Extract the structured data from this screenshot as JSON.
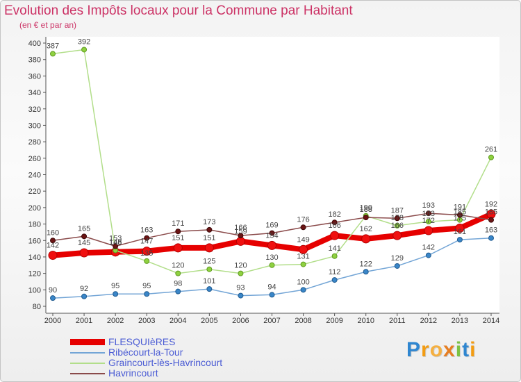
{
  "logo_text": "Proxiti",
  "colors": {
    "title": "#cc3366",
    "legend_text": "#4a5bd4",
    "axis": "#555555",
    "tick_text": "#333333",
    "data_label": "#444444",
    "plot_background": "#ffffff",
    "logo_letters": [
      "#2f86d0",
      "#f39c12",
      "#f5b041",
      "#e67e22",
      "#7cc242",
      "#2f86d0",
      "#f39c12"
    ]
  },
  "chart_data": {
    "type": "line",
    "title": "Evolution des Impôts locaux pour la Commune par Habitant",
    "subtitle": "(en € et par an)",
    "x": [
      2000,
      2001,
      2002,
      2003,
      2004,
      2005,
      2006,
      2007,
      2008,
      2009,
      2010,
      2011,
      2012,
      2013,
      2014
    ],
    "ylim": [
      80,
      400
    ],
    "yticks": [
      80,
      100,
      120,
      140,
      160,
      180,
      200,
      220,
      240,
      260,
      280,
      300,
      320,
      340,
      360,
      380,
      400
    ],
    "grid": false,
    "legend_position": "bottom-left",
    "series": [
      {
        "name": "FLESQUIèRES",
        "color": "#e60000",
        "marker_color": "#f01010",
        "marker_outline": "#b30000",
        "values": [
          142,
          145,
          146,
          147,
          151,
          151,
          159,
          154,
          149,
          166,
          162,
          166,
          172,
          175,
          192
        ]
      },
      {
        "name": "Ribécourt-la-Tour",
        "color": "#73a5d6",
        "marker_color": "#3a86c8",
        "marker_outline": "#1f5a8f",
        "values": [
          90,
          92,
          95,
          95,
          98,
          101,
          93,
          94,
          100,
          112,
          122,
          129,
          142,
          161,
          163
        ]
      },
      {
        "name": "Graincourt-lès-Havrincourt",
        "color": "#b2de8a",
        "marker_color": "#8fd140",
        "marker_outline": "#5e9a1e",
        "values": [
          387,
          392,
          148,
          135,
          120,
          125,
          120,
          130,
          131,
          141,
          190,
          178,
          183,
          185,
          261
        ]
      },
      {
        "name": "Havrincourt",
        "color": "#8a4a4a",
        "marker_color": "#6b1414",
        "marker_outline": "#3d0a0a",
        "values": [
          160,
          165,
          153,
          163,
          171,
          173,
          166,
          169,
          176,
          182,
          188,
          187,
          193,
          191,
          185
        ]
      }
    ]
  }
}
